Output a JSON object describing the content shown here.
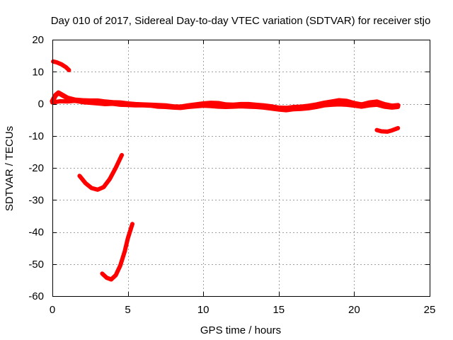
{
  "chart_data": {
    "type": "scatter",
    "title": "Day 010 of 2017, Sidereal Day-to-day VTEC variation (SDTVAR) for receiver stjo",
    "xlabel": "GPS time / hours",
    "ylabel": "SDTVAR / TECUs",
    "xlim": [
      0,
      25
    ],
    "ylim": [
      -60,
      20
    ],
    "xticks": [
      0,
      5,
      10,
      15,
      20,
      25
    ],
    "yticks": [
      -60,
      -50,
      -40,
      -30,
      -20,
      -10,
      0,
      10,
      20
    ],
    "grid": true,
    "color": "#ff0000",
    "series": [
      {
        "name": "arc-top-left",
        "points": [
          [
            0.05,
            13.2
          ],
          [
            0.3,
            12.9
          ],
          [
            0.6,
            12.3
          ],
          [
            0.9,
            11.4
          ],
          [
            1.1,
            10.5
          ]
        ]
      },
      {
        "name": "arc-main",
        "points": [
          [
            0.0,
            0.8
          ],
          [
            0.2,
            2.6
          ],
          [
            0.4,
            3.4
          ],
          [
            0.7,
            2.6
          ],
          [
            1.0,
            1.8
          ],
          [
            1.5,
            1.2
          ],
          [
            2.0,
            1.0
          ],
          [
            2.5,
            0.9
          ],
          [
            3.0,
            0.9
          ],
          [
            3.5,
            0.6
          ],
          [
            4.0,
            0.4
          ],
          [
            4.5,
            0.3
          ],
          [
            5.0,
            0.0
          ],
          [
            5.5,
            -0.2
          ],
          [
            6.0,
            -0.3
          ],
          [
            6.5,
            -0.4
          ],
          [
            7.0,
            -0.5
          ],
          [
            7.5,
            -0.6
          ],
          [
            8.0,
            -0.9
          ],
          [
            8.5,
            -1.0
          ],
          [
            9.0,
            -0.6
          ],
          [
            9.5,
            -0.3
          ],
          [
            10.0,
            0.0
          ],
          [
            10.5,
            0.2
          ],
          [
            11.0,
            0.1
          ],
          [
            11.5,
            -0.3
          ],
          [
            12.0,
            -0.4
          ],
          [
            12.5,
            -0.2
          ],
          [
            13.0,
            -0.2
          ],
          [
            13.5,
            -0.4
          ],
          [
            14.0,
            -0.6
          ],
          [
            14.5,
            -0.9
          ],
          [
            15.0,
            -1.3
          ],
          [
            15.5,
            -1.4
          ],
          [
            16.0,
            -1.1
          ],
          [
            16.5,
            -1.0
          ],
          [
            17.0,
            -0.7
          ],
          [
            17.5,
            -0.3
          ],
          [
            18.0,
            0.2
          ],
          [
            18.5,
            0.6
          ],
          [
            19.0,
            1.0
          ],
          [
            19.5,
            0.8
          ],
          [
            20.0,
            0.1
          ],
          [
            20.5,
            -0.3
          ],
          [
            21.0,
            0.3
          ],
          [
            21.5,
            0.6
          ],
          [
            22.0,
            -0.2
          ],
          [
            22.5,
            -0.7
          ],
          [
            22.9,
            -0.5
          ]
        ]
      },
      {
        "name": "arc-main-lower",
        "points": [
          [
            0.0,
            0.4
          ],
          [
            0.5,
            0.8
          ],
          [
            1.0,
            0.7
          ],
          [
            1.5,
            0.9
          ],
          [
            2.0,
            0.5
          ],
          [
            2.5,
            0.3
          ],
          [
            3.0,
            0.1
          ],
          [
            3.5,
            -0.1
          ],
          [
            4.0,
            0.0
          ],
          [
            4.5,
            -0.3
          ],
          [
            5.0,
            -0.4
          ],
          [
            5.5,
            -0.5
          ],
          [
            6.0,
            -0.5
          ],
          [
            6.5,
            -0.6
          ],
          [
            7.0,
            -0.9
          ],
          [
            7.5,
            -1.0
          ],
          [
            8.0,
            -1.2
          ],
          [
            8.5,
            -1.3
          ],
          [
            9.0,
            -1.0
          ],
          [
            9.5,
            -0.8
          ],
          [
            10.0,
            -0.6
          ],
          [
            10.5,
            -0.7
          ],
          [
            11.0,
            -0.9
          ],
          [
            11.5,
            -1.0
          ],
          [
            12.0,
            -0.9
          ],
          [
            12.5,
            -0.8
          ],
          [
            13.0,
            -0.9
          ],
          [
            13.5,
            -1.0
          ],
          [
            14.0,
            -1.2
          ],
          [
            14.5,
            -1.5
          ],
          [
            15.0,
            -1.8
          ],
          [
            15.5,
            -2.0
          ],
          [
            16.0,
            -1.7
          ],
          [
            16.5,
            -1.6
          ],
          [
            17.0,
            -1.4
          ],
          [
            17.5,
            -1.0
          ],
          [
            18.0,
            -0.5
          ],
          [
            18.5,
            -0.3
          ],
          [
            19.0,
            -0.2
          ],
          [
            19.5,
            -0.3
          ],
          [
            20.0,
            -0.6
          ],
          [
            20.5,
            -0.9
          ],
          [
            21.0,
            -0.5
          ],
          [
            21.5,
            -0.3
          ],
          [
            22.0,
            -0.9
          ],
          [
            22.5,
            -1.2
          ],
          [
            22.9,
            -1.0
          ]
        ]
      },
      {
        "name": "arc-right",
        "points": [
          [
            21.5,
            -8.2
          ],
          [
            21.8,
            -8.6
          ],
          [
            22.2,
            -8.7
          ],
          [
            22.5,
            -8.3
          ],
          [
            22.9,
            -7.6
          ]
        ]
      },
      {
        "name": "arc-mid",
        "points": [
          [
            1.8,
            -22.5
          ],
          [
            2.2,
            -24.8
          ],
          [
            2.6,
            -26.3
          ],
          [
            3.0,
            -26.8
          ],
          [
            3.4,
            -26.0
          ],
          [
            3.8,
            -23.5
          ],
          [
            4.2,
            -20.0
          ],
          [
            4.6,
            -16.0
          ]
        ]
      },
      {
        "name": "arc-bottom",
        "points": [
          [
            3.3,
            -53.0
          ],
          [
            3.6,
            -54.3
          ],
          [
            3.9,
            -54.8
          ],
          [
            4.2,
            -53.5
          ],
          [
            4.5,
            -50.5
          ],
          [
            4.8,
            -46.0
          ],
          [
            5.0,
            -42.0
          ],
          [
            5.3,
            -37.5
          ]
        ]
      }
    ]
  }
}
